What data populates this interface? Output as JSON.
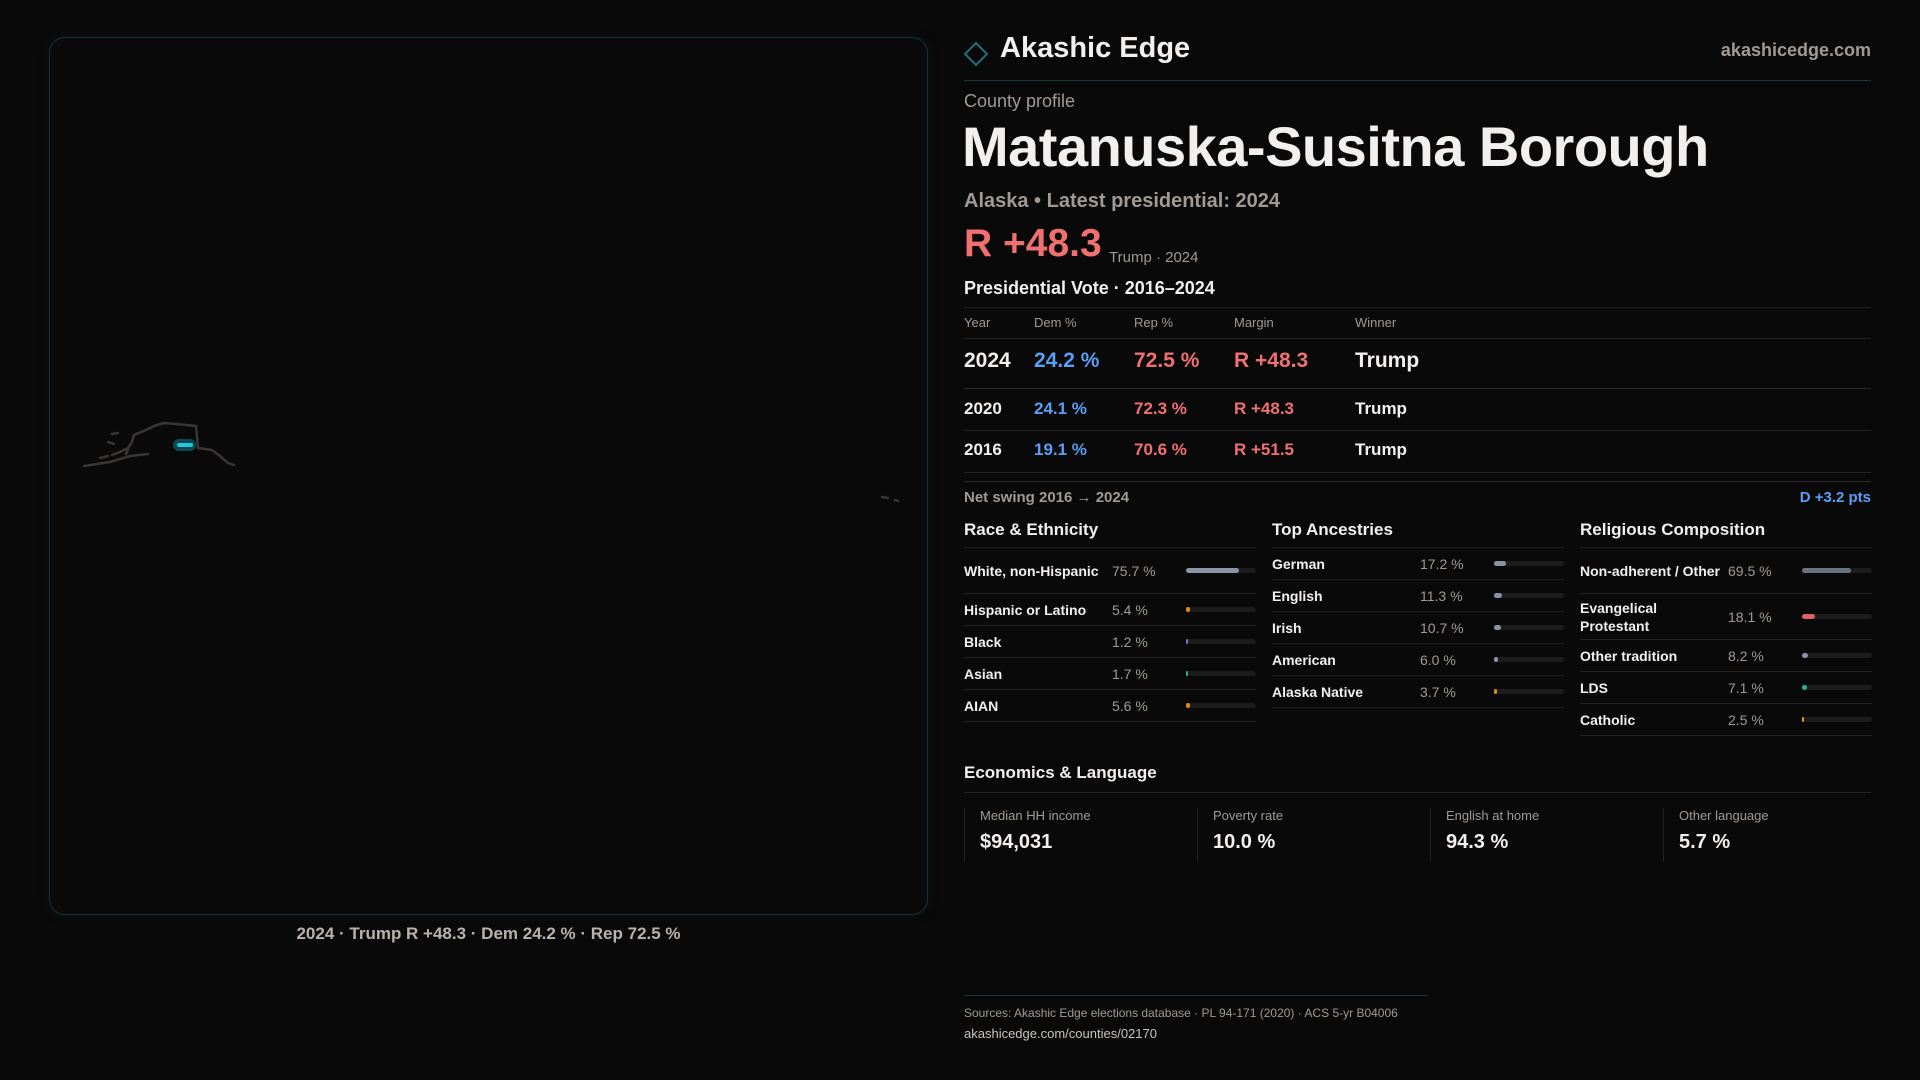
{
  "brand": {
    "name": "Akashic Edge",
    "site": "akashicedge.com",
    "accent": "#1f6f78"
  },
  "map": {
    "caption": "2024 · Trump R +48.3 · Dem 24.2 % · Rep 72.5 %",
    "highlight_color": "#22c8e0"
  },
  "profile": {
    "kicker": "County profile",
    "title": "Matanuska-Susitna Borough",
    "subtitle": "Alaska • Latest presidential: 2024",
    "margin": "R +48.3",
    "margin_note": "Trump · 2024"
  },
  "vote": {
    "title": "Presidential Vote · 2016–2024",
    "headers": [
      "Year",
      "Dem %",
      "Rep %",
      "Margin",
      "Winner"
    ],
    "rows": [
      {
        "year": "2024",
        "dem": "24.2 %",
        "rep": "72.5 %",
        "margin": "R +48.3",
        "winner": "Trump"
      },
      {
        "year": "2020",
        "dem": "24.1 %",
        "rep": "72.3 %",
        "margin": "R +48.3",
        "winner": "Trump"
      },
      {
        "year": "2016",
        "dem": "19.1 %",
        "rep": "70.6 %",
        "margin": "R +51.5",
        "winner": "Trump"
      }
    ],
    "swing_label": "Net swing 2016 → 2024",
    "swing_value": "D +3.2 pts"
  },
  "race": {
    "title": "Race & Ethnicity",
    "items": [
      {
        "label": "White, non-Hispanic",
        "value": "75.7 %",
        "pct": 75.7,
        "color": "#8a94a6"
      },
      {
        "label": "Hispanic or Latino",
        "value": "5.4 %",
        "pct": 5.4,
        "color": "#d98c1a"
      },
      {
        "label": "Black",
        "value": "1.2 %",
        "pct": 1.2,
        "color": "#8a6fd1"
      },
      {
        "label": "Asian",
        "value": "1.7 %",
        "pct": 1.7,
        "color": "#2bb39a"
      },
      {
        "label": "AIAN",
        "value": "5.6 %",
        "pct": 5.6,
        "color": "#d98c1a"
      }
    ]
  },
  "ancestry": {
    "title": "Top Ancestries",
    "items": [
      {
        "label": "German",
        "value": "17.2 %",
        "pct": 17.2,
        "color": "#8a94a6"
      },
      {
        "label": "English",
        "value": "11.3 %",
        "pct": 11.3,
        "color": "#8a94a6"
      },
      {
        "label": "Irish",
        "value": "10.7 %",
        "pct": 10.7,
        "color": "#8a94a6"
      },
      {
        "label": "American",
        "value": "6.0 %",
        "pct": 6.0,
        "color": "#8a94a6"
      },
      {
        "label": "Alaska Native",
        "value": "3.7 %",
        "pct": 3.7,
        "color": "#d98c1a"
      }
    ]
  },
  "religion": {
    "title": "Religious Composition",
    "items": [
      {
        "label": "Non-adherent / Other",
        "value": "69.5 %",
        "pct": 69.5,
        "color": "#6b7280"
      },
      {
        "label": "Evangelical Protestant",
        "value": "18.1 %",
        "pct": 18.1,
        "color": "#e06060"
      },
      {
        "label": "Other tradition",
        "value": "8.2 %",
        "pct": 8.2,
        "color": "#8a94a6"
      },
      {
        "label": "LDS",
        "value": "7.1 %",
        "pct": 7.1,
        "color": "#2bb39a"
      },
      {
        "label": "Catholic",
        "value": "2.5 %",
        "pct": 2.5,
        "color": "#d4a017"
      }
    ]
  },
  "economics": {
    "title": "Economics & Language",
    "stats": [
      {
        "label": "Median HH income",
        "value": "$94,031"
      },
      {
        "label": "Poverty rate",
        "value": "10.0 %"
      },
      {
        "label": "English at home",
        "value": "94.3 %"
      },
      {
        "label": "Other language",
        "value": "5.7 %"
      }
    ]
  },
  "footer": {
    "sources": "Sources: Akashic Edge elections database · PL 94-171 (2020) · ACS 5-yr B04006",
    "url": "akashicedge.com/counties/02170"
  }
}
